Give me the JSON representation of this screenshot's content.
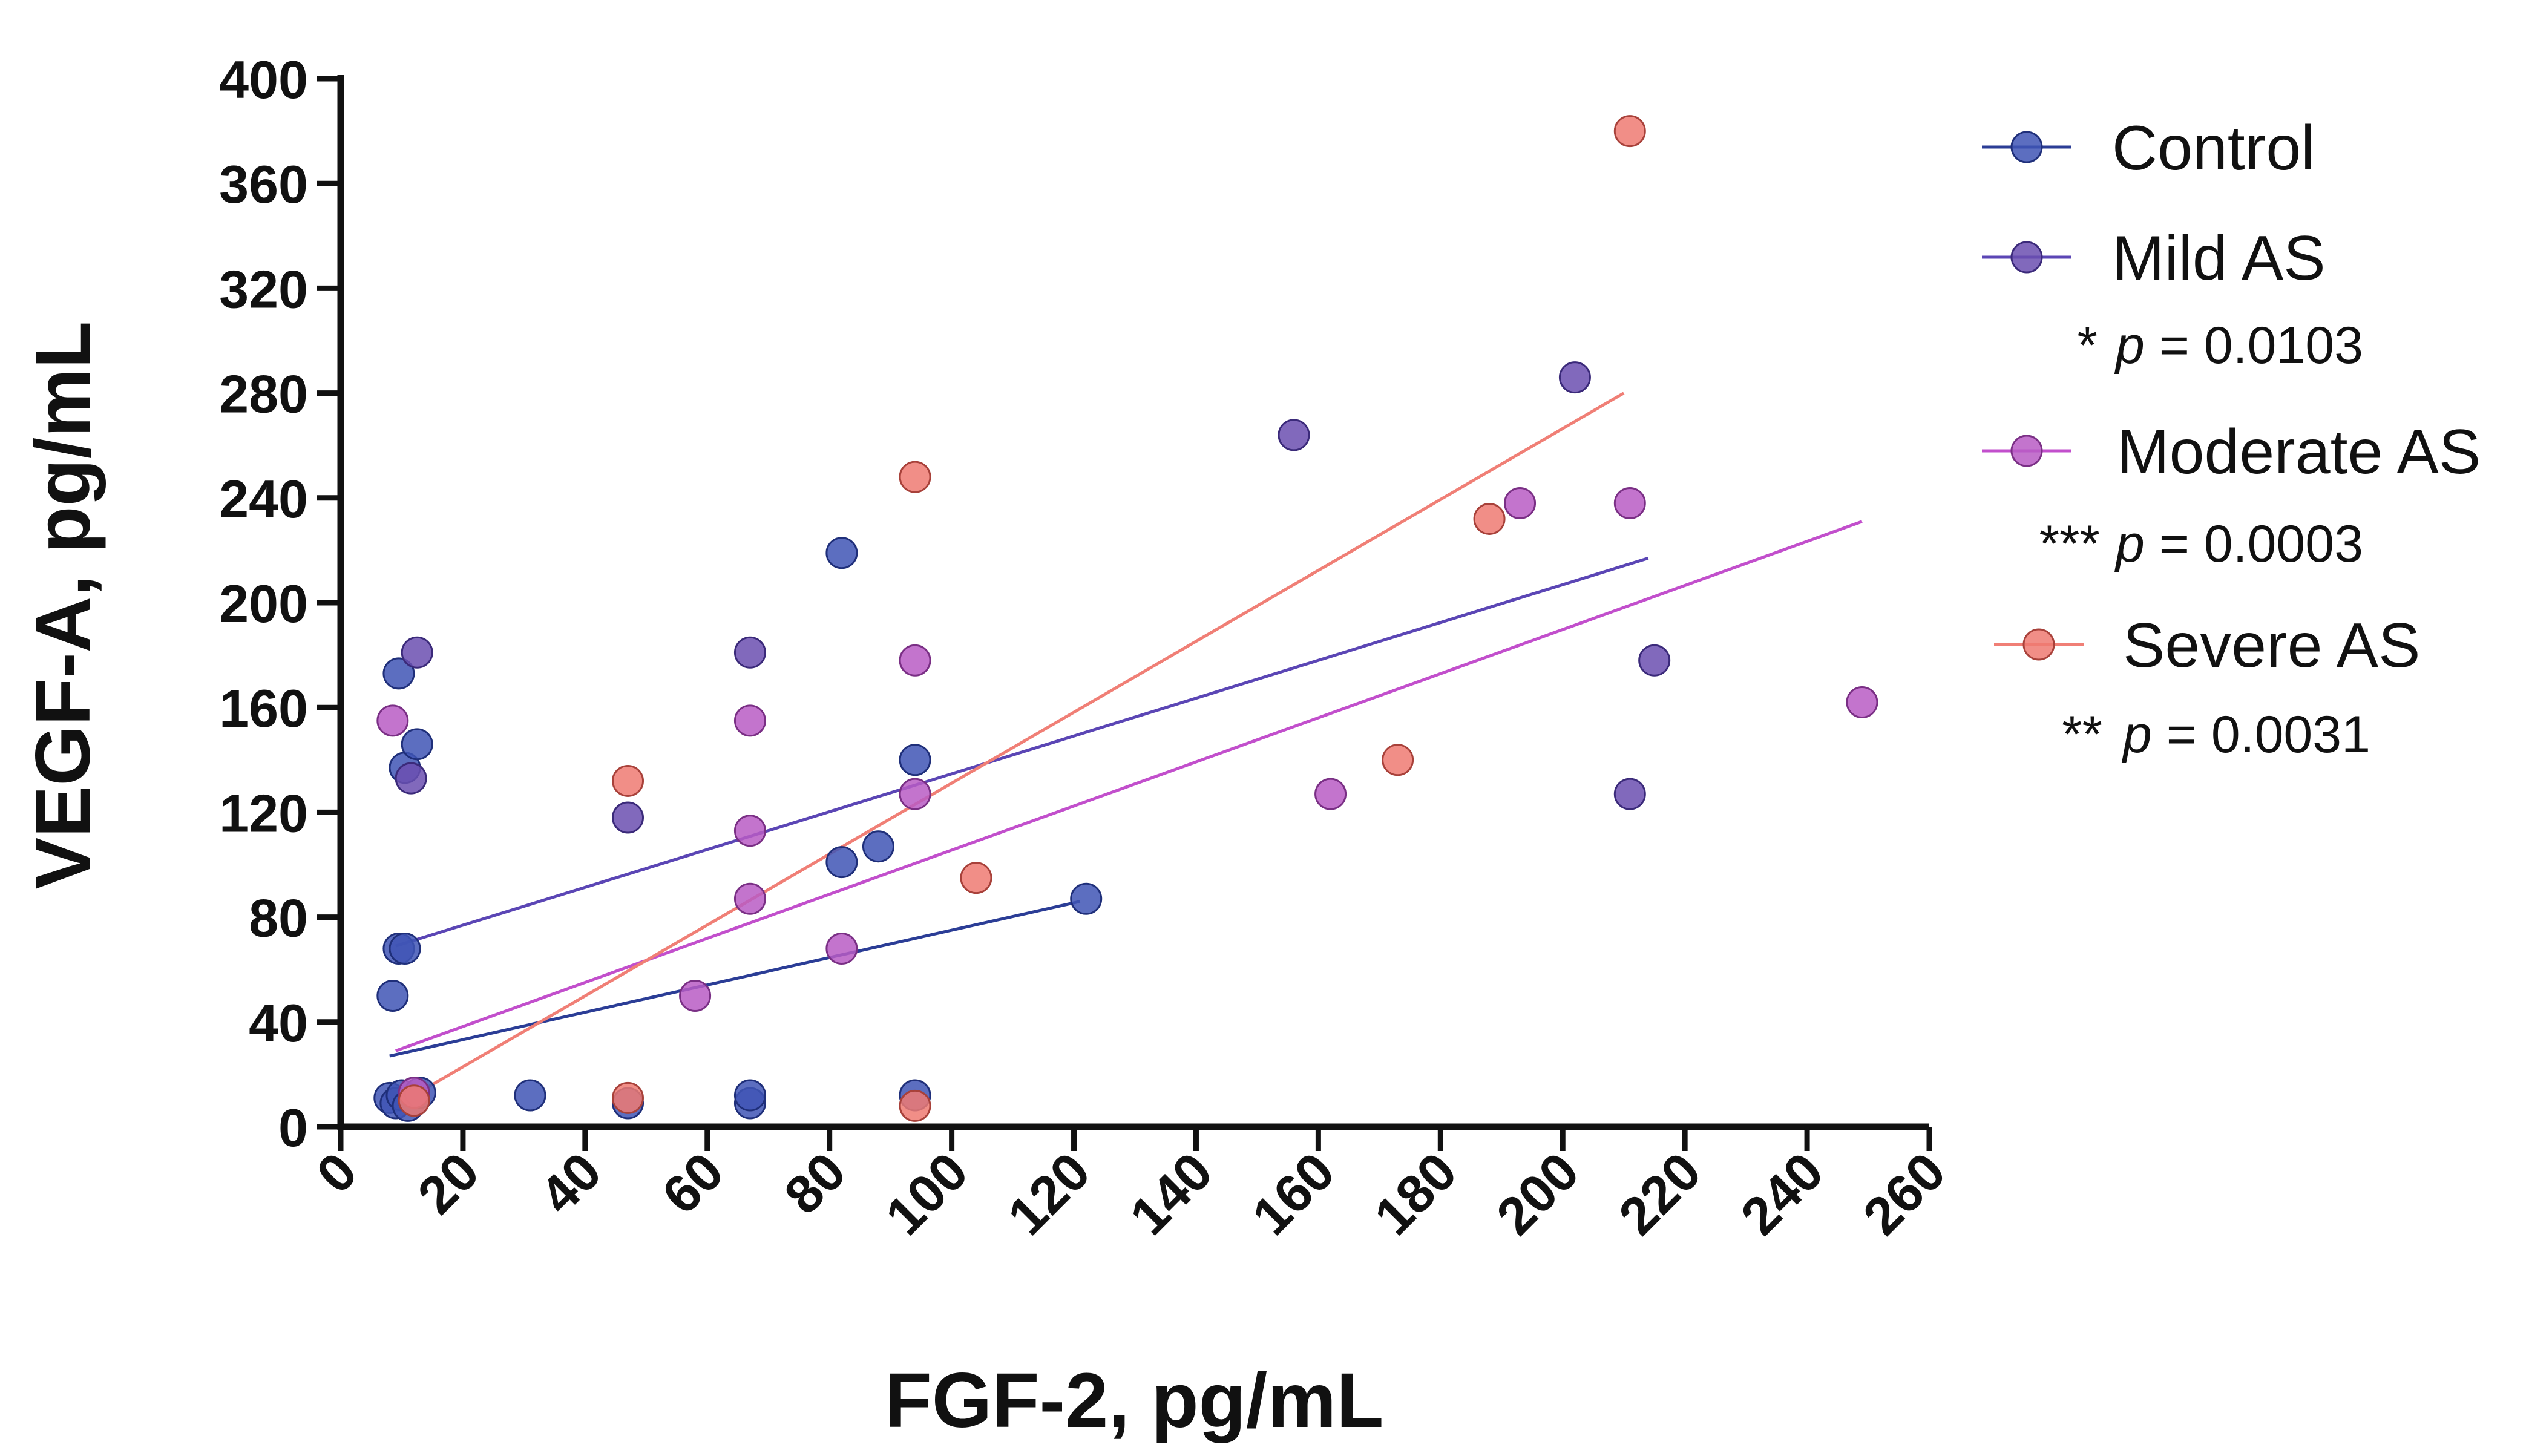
{
  "chart_data": {
    "type": "scatter",
    "title": "",
    "xlabel": "FGF-2, pg/mL",
    "ylabel": "VEGF-A, pg/mL",
    "xlim": [
      0,
      260
    ],
    "ylim": [
      0,
      400
    ],
    "xticks": [
      0,
      20,
      40,
      60,
      80,
      100,
      120,
      140,
      160,
      180,
      200,
      220,
      240,
      260
    ],
    "yticks": [
      0,
      40,
      80,
      120,
      160,
      200,
      240,
      280,
      320,
      360,
      400
    ],
    "grid": false,
    "legend_position": "right",
    "series": [
      {
        "name": "Control",
        "color": "#3f55b5",
        "stroke": "#1f2f7a",
        "line_color": "#2b3d96",
        "stars": "",
        "p_label": "",
        "points": [
          [
            8.5,
            50
          ],
          [
            9.5,
            173
          ],
          [
            9.5,
            68
          ],
          [
            10.5,
            68
          ],
          [
            10.5,
            137
          ],
          [
            12.5,
            146
          ],
          [
            8,
            11
          ],
          [
            9,
            9
          ],
          [
            10,
            12
          ],
          [
            11,
            8
          ],
          [
            12,
            10
          ],
          [
            13,
            13
          ],
          [
            31,
            12
          ],
          [
            47,
            9
          ],
          [
            67,
            9
          ],
          [
            67,
            12
          ],
          [
            82,
            101
          ],
          [
            82,
            219
          ],
          [
            88,
            107
          ],
          [
            94,
            140
          ],
          [
            94,
            12
          ],
          [
            122,
            87
          ]
        ],
        "fit": [
          [
            8,
            27
          ],
          [
            121,
            86
          ]
        ]
      },
      {
        "name": "Mild AS",
        "color": "#6b4fb0",
        "stroke": "#3b2a7a",
        "line_color": "#5b46b5",
        "stars": "*",
        "p_label": "p = 0.0103",
        "points": [
          [
            11.5,
            133
          ],
          [
            12.5,
            181
          ],
          [
            47,
            118
          ],
          [
            67,
            181
          ],
          [
            156,
            264
          ],
          [
            202,
            286
          ],
          [
            211,
            127
          ],
          [
            215,
            178
          ]
        ],
        "fit": [
          [
            9,
            69
          ],
          [
            214,
            217
          ]
        ]
      },
      {
        "name": "Moderate AS",
        "color": "#b85cc4",
        "stroke": "#7a2f85",
        "line_color": "#c24fcc",
        "stars": "***",
        "p_label": "p =  0.0003",
        "points": [
          [
            8.5,
            155
          ],
          [
            58,
            50
          ],
          [
            67,
            113
          ],
          [
            67,
            87
          ],
          [
            67,
            155
          ],
          [
            82,
            68
          ],
          [
            94,
            178
          ],
          [
            94,
            127
          ],
          [
            162,
            127
          ],
          [
            193,
            238
          ],
          [
            211,
            238
          ],
          [
            249,
            162
          ],
          [
            12,
            13
          ]
        ],
        "fit": [
          [
            9,
            29
          ],
          [
            249,
            231
          ]
        ]
      },
      {
        "name": "Severe AS",
        "color": "#ee7a72",
        "stroke": "#a8413a",
        "line_color": "#f07f76",
        "stars": "**",
        "p_label": "p =  0.0031",
        "points": [
          [
            47,
            132
          ],
          [
            47,
            11
          ],
          [
            94,
            248
          ],
          [
            94,
            8
          ],
          [
            104,
            95
          ],
          [
            173,
            140
          ],
          [
            188,
            232
          ],
          [
            211,
            380
          ],
          [
            12,
            10
          ]
        ],
        "fit": [
          [
            9,
            8
          ],
          [
            210,
            280
          ]
        ]
      }
    ]
  }
}
